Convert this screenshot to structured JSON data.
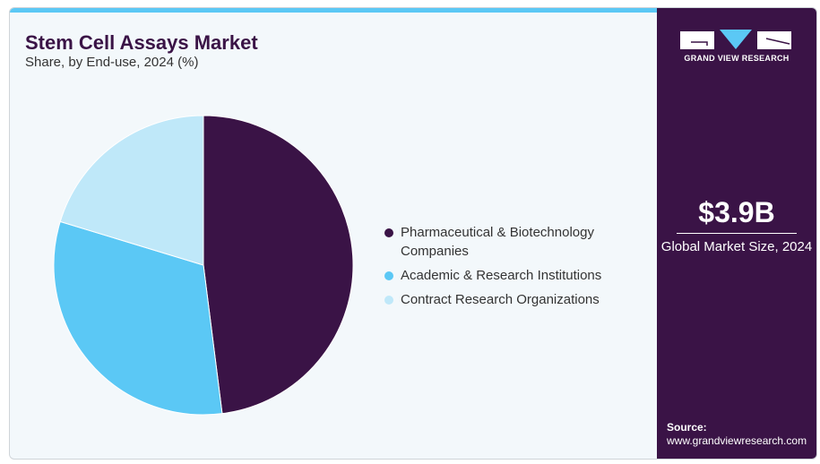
{
  "title": "Stem Cell Assays Market",
  "subtitle": "Share, by End-use, 2024 (%)",
  "brand": {
    "name": "GRAND VIEW RESEARCH"
  },
  "side": {
    "market_size": "$3.9B",
    "market_label": "Global Market Size, 2024",
    "source_label": "Source:",
    "source_url": "www.grandviewresearch.com"
  },
  "colors": {
    "dark": "#3a1346",
    "mid": "#5bc8f5",
    "light": "#bfe8f9",
    "accent": "#5bc8f5"
  },
  "chart_data": {
    "type": "pie",
    "title": "Stem Cell Assays Market",
    "categories": [
      "Pharmaceutical & Biotechnology Companies",
      "Academic & Research Institutions",
      "Contract Research Organizations"
    ],
    "values": [
      48.0,
      31.7,
      20.3
    ],
    "colors": [
      "#3a1346",
      "#5bc8f5",
      "#bfe8f9"
    ],
    "legend": "right"
  }
}
